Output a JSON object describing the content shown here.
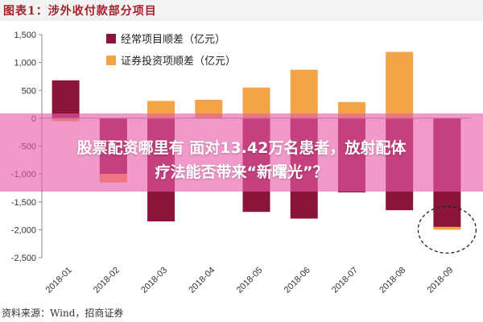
{
  "header": {
    "title": "图表1：涉外收付款部分项目"
  },
  "chart_data": {
    "type": "bar",
    "categories": [
      "2018-01",
      "2018-02",
      "2018-03",
      "2018-04",
      "2018-05",
      "2018-06",
      "2018-07",
      "2018-08",
      "2018-09"
    ],
    "series": [
      {
        "name": "经常项目顺差（亿元）",
        "color": "#8b1538",
        "values": [
          680,
          -1000,
          -1850,
          0,
          -1680,
          -1800,
          -1330,
          -1650,
          -1950
        ]
      },
      {
        "name": "证券投资项顺差（亿元）",
        "color": "#f4a347",
        "values": [
          -50,
          -150,
          310,
          330,
          550,
          870,
          290,
          1190,
          -50
        ]
      }
    ],
    "ylim": [
      -2500,
      1500
    ],
    "yticks": [
      1500,
      1000,
      500,
      0,
      -500,
      -1000,
      -1500,
      -2000,
      -2500
    ],
    "ytick_labels": [
      "1,500",
      "1,000",
      "500",
      "0",
      "-500",
      "-1,000",
      "-1,500",
      "-2,000",
      "-2,500"
    ],
    "grid": false,
    "legend_position": "top"
  },
  "overlay": {
    "line1": "股票配资哪里有 面对13.42万名患者，放射配体",
    "line2": "疗法能否带来“新曙光”？"
  },
  "source": "资料来源：Wind，招商证券"
}
